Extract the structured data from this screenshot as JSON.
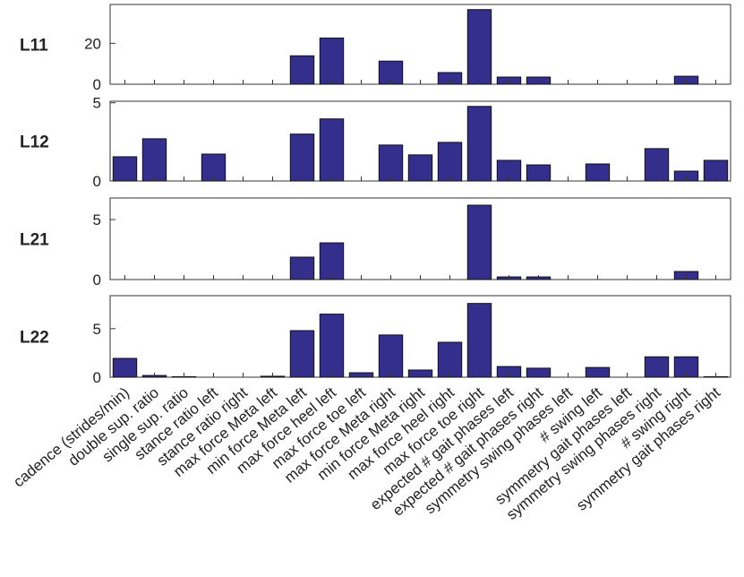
{
  "chart_data": {
    "type": "bar",
    "color": "#342f8c",
    "categories": [
      "cadence (strides/min)",
      "double sup. ratio",
      "single sup. ratio",
      "stance ratio left",
      "stance ratio right",
      "max force Meta left",
      "min force Meta left",
      "max force heel left",
      "max force toe left",
      "max force Meta right",
      "min force Meta right",
      "max force heel right",
      "max force toe right",
      "expected # gait phases left",
      "expected # gait phases right",
      "symmetry swing phases left",
      "# swing left",
      "symmetry gait phases left",
      "symmetry swing phases right",
      "# swing right",
      "symmetry gait phases right"
    ],
    "panels": [
      {
        "label": "L11",
        "ylim": [
          0,
          39
        ],
        "yticks": [
          0,
          20
        ],
        "values": [
          0,
          0,
          0,
          0,
          0,
          0,
          13.9,
          22.6,
          0,
          11.3,
          0,
          5.7,
          36.5,
          3.5,
          3.5,
          0,
          0,
          0,
          0,
          3.9,
          0
        ]
      },
      {
        "label": "L12",
        "ylim": [
          0,
          5.1
        ],
        "yticks": [
          0,
          5
        ],
        "values": [
          1.55,
          2.7,
          0,
          1.72,
          0,
          0,
          3.0,
          3.97,
          0,
          2.3,
          1.67,
          2.47,
          4.77,
          1.32,
          1.03,
          0,
          1.09,
          0,
          2.07,
          0.63,
          1.32
        ]
      },
      {
        "label": "L21",
        "ylim": [
          0,
          6.8
        ],
        "yticks": [
          0,
          5
        ],
        "values": [
          0,
          0,
          0,
          0,
          0,
          0,
          1.87,
          3.06,
          0,
          0,
          0,
          0,
          6.2,
          0.22,
          0.22,
          0,
          0,
          0,
          0,
          0.67,
          0
        ]
      },
      {
        "label": "L22",
        "ylim": [
          0,
          8.4
        ],
        "yticks": [
          0,
          5
        ],
        "values": [
          1.94,
          0.18,
          0.05,
          0,
          0,
          0.1,
          4.8,
          6.5,
          0.46,
          4.35,
          0.74,
          3.6,
          7.6,
          1.1,
          0.93,
          0,
          1.0,
          0,
          2.1,
          2.1,
          0.05
        ]
      }
    ]
  }
}
